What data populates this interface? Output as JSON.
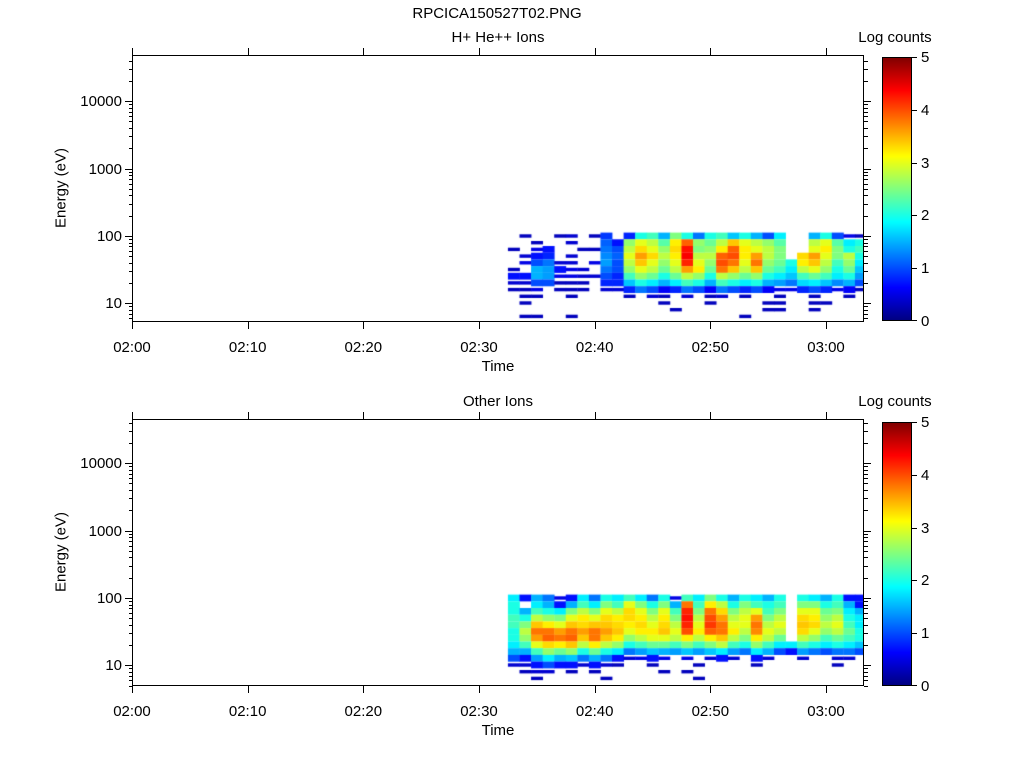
{
  "title": "RPCICA150527T02.PNG",
  "colors": {
    "background": "#ffffff",
    "axis": "#000000",
    "text": "#000000",
    "colormap": "jet"
  },
  "time_axis": {
    "label": "Time",
    "tick_labels": [
      "02:00",
      "02:10",
      "02:20",
      "02:30",
      "02:40",
      "02:50",
      "03:00"
    ],
    "tick_minutes": [
      0,
      10,
      20,
      30,
      40,
      50,
      60
    ],
    "range_minutes": [
      0,
      63.3
    ]
  },
  "energy_axis": {
    "label": "Energy (eV)",
    "scale": "log",
    "tick_labels": [
      "10",
      "100",
      "1000",
      "10000"
    ],
    "tick_values": [
      10,
      100,
      1000,
      10000
    ],
    "range_ev": [
      5.3,
      48000
    ]
  },
  "colorbar": {
    "label": "Log counts",
    "min": 0,
    "max": 5,
    "tick_labels": [
      "0",
      "1",
      "2",
      "3",
      "4",
      "5"
    ],
    "tick_values": [
      0,
      1,
      2,
      3,
      4,
      5
    ]
  },
  "chart_data": [
    {
      "type": "heatmap",
      "title": "H+ He++ Ions",
      "xlabel": "Time",
      "ylabel": "Energy (eV)",
      "colorbar_label": "Log counts",
      "value_name": "Log counts",
      "value_range": [
        0,
        5
      ],
      "x_ticks": [
        "02:00",
        "02:10",
        "02:20",
        "02:30",
        "02:40",
        "02:50",
        "03:00"
      ],
      "data_start_time": "02:32",
      "column_minutes_after_0200": 32.5,
      "column_width_minutes": 1,
      "row_energies_ev": [
        100,
        79,
        63,
        50,
        40,
        32,
        25,
        20,
        16,
        12.6,
        10,
        8,
        6.3
      ],
      "grid": [
        [
          null,
          0.3,
          null,
          null,
          0.3,
          0.4,
          null,
          0.3,
          0.9,
          null,
          0.8,
          2.0,
          2.2,
          1.5,
          2.5,
          2.0,
          1.2,
          2.0,
          2.2,
          1.6,
          2.0,
          1.5,
          1.0,
          1.8,
          null,
          null,
          1.5,
          2.0,
          1.0,
          0.5,
          0.3
        ],
        [
          null,
          null,
          0.3,
          null,
          null,
          0.4,
          null,
          null,
          1.1,
          0.7,
          2.6,
          3.0,
          2.8,
          2.3,
          3.2,
          3.9,
          2.6,
          2.4,
          2.8,
          3.4,
          3.0,
          2.8,
          2.6,
          2.3,
          null,
          null,
          2.8,
          3.0,
          2.3,
          1.8,
          2.0
        ],
        [
          0.3,
          null,
          0.5,
          0.7,
          null,
          null,
          0.3,
          0.3,
          1.2,
          1.0,
          2.8,
          3.3,
          3.0,
          2.6,
          3.3,
          4.3,
          2.5,
          2.6,
          3.2,
          3.9,
          3.2,
          3.0,
          2.8,
          2.5,
          null,
          null,
          3.0,
          3.2,
          2.5,
          2.0,
          2.2
        ],
        [
          null,
          0.4,
          0.7,
          0.8,
          null,
          0.4,
          null,
          null,
          1.3,
          1.1,
          3.0,
          3.6,
          3.3,
          2.8,
          3.2,
          4.4,
          2.8,
          2.8,
          3.9,
          4.0,
          3.2,
          3.6,
          2.8,
          2.5,
          null,
          3.3,
          3.6,
          3.0,
          2.5,
          2.8,
          2.0
        ],
        [
          null,
          0.5,
          1.0,
          1.2,
          0.4,
          0.4,
          null,
          0.5,
          1.4,
          1.0,
          2.8,
          3.4,
          3.0,
          2.6,
          3.0,
          4.2,
          3.0,
          2.6,
          4.0,
          3.8,
          3.0,
          3.8,
          2.6,
          2.4,
          2.0,
          3.2,
          3.4,
          2.8,
          2.2,
          2.6,
          1.8
        ],
        [
          0.3,
          null,
          1.5,
          1.4,
          0.7,
          0.5,
          0.4,
          null,
          1.2,
          1.0,
          2.6,
          3.0,
          2.8,
          2.4,
          2.8,
          3.6,
          3.2,
          2.4,
          3.8,
          3.4,
          2.8,
          3.4,
          2.4,
          2.2,
          1.8,
          2.8,
          3.0,
          2.6,
          2.0,
          2.4,
          1.6
        ],
        [
          0.7,
          0.7,
          1.5,
          1.4,
          0.5,
          0.5,
          0.4,
          0.4,
          1.0,
          0.8,
          2.2,
          2.6,
          2.4,
          2.0,
          2.4,
          2.8,
          2.6,
          2.0,
          2.8,
          2.6,
          2.4,
          2.6,
          2.0,
          1.8,
          1.6,
          2.2,
          2.4,
          2.2,
          1.8,
          2.0,
          1.4
        ],
        [
          0.4,
          0.4,
          1.0,
          1.0,
          0.3,
          0.3,
          0.3,
          null,
          0.8,
          0.8,
          1.6,
          2.0,
          1.8,
          1.5,
          1.8,
          2.2,
          2.0,
          1.5,
          2.2,
          2.0,
          1.8,
          2.0,
          1.5,
          1.4,
          1.2,
          1.7,
          1.8,
          1.6,
          1.3,
          1.5,
          1.0
        ],
        [
          0.3,
          0.3,
          0.5,
          null,
          0.3,
          0.3,
          0.3,
          null,
          0.4,
          0.4,
          0.8,
          1.2,
          1.0,
          0.6,
          0.8,
          1.2,
          1.0,
          0.6,
          1.2,
          1.0,
          0.8,
          1.0,
          0.6,
          0.5,
          0.5,
          0.8,
          1.0,
          0.8,
          0.5,
          0.6,
          0.3
        ],
        [
          null,
          0.3,
          0.3,
          null,
          null,
          0.3,
          null,
          null,
          null,
          null,
          0.3,
          null,
          0.4,
          0.3,
          null,
          0.4,
          null,
          0.3,
          0.4,
          null,
          0.3,
          null,
          null,
          0.3,
          null,
          null,
          0.3,
          null,
          null,
          0.3,
          null
        ],
        [
          null,
          0.3,
          null,
          null,
          null,
          null,
          null,
          null,
          null,
          null,
          null,
          null,
          null,
          0.3,
          null,
          null,
          null,
          0.3,
          null,
          null,
          null,
          null,
          0.3,
          0.3,
          null,
          null,
          0.3,
          0.3,
          null,
          null,
          null
        ],
        [
          null,
          null,
          null,
          null,
          null,
          null,
          null,
          null,
          null,
          null,
          null,
          null,
          null,
          null,
          0.3,
          null,
          null,
          null,
          null,
          null,
          null,
          null,
          0.3,
          0.3,
          null,
          null,
          0.3,
          null,
          null,
          null,
          null
        ],
        [
          null,
          0.3,
          0.3,
          null,
          null,
          0.3,
          null,
          null,
          null,
          null,
          null,
          null,
          null,
          null,
          null,
          null,
          null,
          null,
          null,
          null,
          0.3,
          null,
          null,
          null,
          null,
          null,
          null,
          null,
          null,
          null,
          null
        ]
      ]
    },
    {
      "type": "heatmap",
      "title": "Other Ions",
      "xlabel": "Time",
      "ylabel": "Energy (eV)",
      "colorbar_label": "Log counts",
      "value_name": "Log counts",
      "value_range": [
        0,
        5
      ],
      "x_ticks": [
        "02:00",
        "02:10",
        "02:20",
        "02:30",
        "02:40",
        "02:50",
        "03:00"
      ],
      "data_start_time": "02:32",
      "column_minutes_after_0200": 32.5,
      "column_width_minutes": 1,
      "row_energies_ev": [
        100,
        79,
        63,
        50,
        40,
        32,
        25,
        20,
        16,
        12.6,
        10,
        8,
        6.3
      ],
      "grid": [
        [
          1.8,
          0.7,
          1.5,
          1.2,
          0.5,
          0.7,
          1.8,
          1.2,
          2.0,
          1.8,
          2.2,
          1.8,
          1.2,
          2.0,
          0.5,
          2.2,
          1.8,
          2.5,
          2.0,
          1.5,
          2.0,
          1.8,
          1.5,
          2.0,
          null,
          2.0,
          1.8,
          1.5,
          2.0,
          0.7,
          0.7
        ],
        [
          2.0,
          null,
          1.8,
          1.5,
          0.7,
          1.5,
          2.2,
          1.8,
          2.5,
          2.2,
          3.0,
          2.5,
          2.0,
          2.5,
          1.5,
          3.8,
          2.2,
          3.2,
          2.8,
          2.0,
          2.5,
          2.2,
          2.0,
          2.2,
          null,
          2.5,
          2.5,
          2.0,
          2.2,
          1.5,
          0.7
        ],
        [
          2.0,
          1.5,
          2.2,
          2.0,
          1.8,
          2.5,
          2.8,
          2.5,
          3.0,
          2.8,
          3.3,
          3.0,
          2.5,
          3.0,
          2.2,
          4.2,
          2.5,
          3.8,
          3.3,
          2.5,
          2.8,
          3.0,
          2.2,
          2.5,
          null,
          3.0,
          3.0,
          2.4,
          2.5,
          1.8,
          1.5
        ],
        [
          2.2,
          2.0,
          2.8,
          2.6,
          2.5,
          3.0,
          3.2,
          3.0,
          3.3,
          3.2,
          3.3,
          3.2,
          2.8,
          3.2,
          2.5,
          4.3,
          2.8,
          4.0,
          3.6,
          2.8,
          3.0,
          3.6,
          2.5,
          2.8,
          null,
          3.3,
          3.2,
          2.6,
          2.8,
          2.0,
          1.8
        ],
        [
          2.2,
          2.5,
          3.4,
          3.2,
          3.0,
          3.4,
          3.3,
          3.4,
          3.4,
          3.3,
          3.2,
          3.3,
          3.0,
          3.3,
          2.8,
          4.2,
          3.0,
          4.1,
          3.8,
          3.0,
          3.0,
          3.8,
          2.8,
          3.0,
          null,
          3.4,
          3.3,
          2.8,
          3.0,
          2.2,
          1.8
        ],
        [
          2.0,
          2.8,
          3.8,
          3.8,
          3.6,
          3.8,
          3.6,
          3.8,
          3.6,
          3.4,
          3.0,
          3.2,
          3.2,
          3.4,
          3.0,
          4.0,
          3.2,
          3.9,
          3.8,
          3.2,
          2.8,
          3.7,
          3.0,
          2.8,
          null,
          3.3,
          3.0,
          2.6,
          2.8,
          2.4,
          2.0
        ],
        [
          2.0,
          2.6,
          3.6,
          3.9,
          3.8,
          3.9,
          3.4,
          3.8,
          3.4,
          3.2,
          2.6,
          2.8,
          3.0,
          3.0,
          2.8,
          3.2,
          2.8,
          3.2,
          3.4,
          2.8,
          2.5,
          3.2,
          2.8,
          2.4,
          null,
          2.8,
          2.6,
          2.2,
          2.4,
          2.2,
          2.0
        ],
        [
          1.8,
          2.2,
          3.0,
          3.3,
          3.2,
          3.4,
          2.8,
          3.2,
          2.8,
          2.6,
          2.0,
          2.2,
          2.4,
          2.4,
          2.2,
          2.5,
          2.2,
          2.5,
          2.8,
          2.2,
          2.0,
          2.6,
          2.2,
          1.8,
          1.8,
          2.2,
          2.0,
          1.8,
          2.0,
          1.8,
          1.6
        ],
        [
          1.5,
          1.5,
          2.2,
          2.6,
          2.4,
          2.6,
          2.0,
          2.4,
          2.0,
          1.8,
          1.2,
          1.4,
          1.6,
          1.5,
          1.4,
          1.6,
          1.4,
          1.6,
          1.8,
          1.4,
          1.2,
          1.8,
          1.5,
          1.0,
          0.7,
          1.4,
          1.2,
          1.0,
          1.2,
          1.2,
          1.0
        ],
        [
          1.0,
          0.7,
          1.4,
          1.8,
          1.5,
          1.6,
          1.2,
          1.5,
          1.2,
          0.7,
          0.4,
          0.5,
          0.7,
          0.5,
          null,
          0.5,
          null,
          0.4,
          0.7,
          0.4,
          null,
          0.7,
          0.4,
          null,
          null,
          0.4,
          null,
          null,
          0.4,
          0.4,
          null
        ],
        [
          0.4,
          0.4,
          0.7,
          1.0,
          0.7,
          0.7,
          0.4,
          0.7,
          0.4,
          0.3,
          null,
          null,
          0.3,
          null,
          null,
          null,
          0.3,
          null,
          null,
          null,
          null,
          0.3,
          null,
          null,
          null,
          null,
          null,
          null,
          0.3,
          null,
          null
        ],
        [
          null,
          0.3,
          0.4,
          0.4,
          null,
          0.3,
          null,
          0.3,
          null,
          null,
          null,
          null,
          null,
          0.3,
          null,
          0.3,
          null,
          null,
          null,
          null,
          null,
          null,
          null,
          null,
          null,
          null,
          null,
          null,
          null,
          null,
          null
        ],
        [
          null,
          null,
          0.3,
          null,
          null,
          null,
          null,
          null,
          0.3,
          null,
          null,
          null,
          null,
          null,
          null,
          null,
          0.3,
          null,
          null,
          null,
          null,
          null,
          null,
          null,
          null,
          null,
          null,
          null,
          null,
          null,
          null
        ]
      ]
    }
  ]
}
